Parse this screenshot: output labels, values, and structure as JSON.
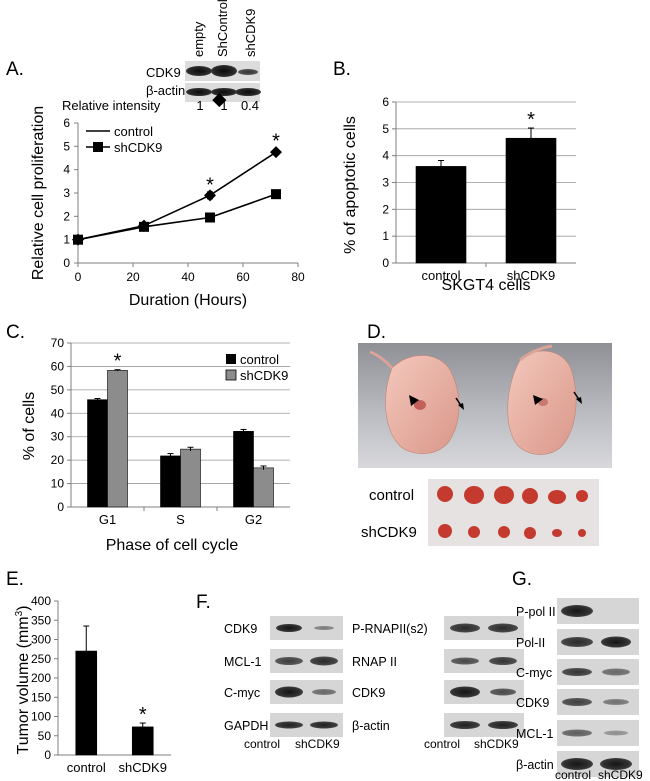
{
  "panels": {
    "A": "A.",
    "B": "B.",
    "C": "C.",
    "D": "D.",
    "E": "E.",
    "F": "F.",
    "G": "G."
  },
  "panel_a_blot": {
    "lanes": [
      "empty",
      "ShControl",
      "shCDK9"
    ],
    "rows": [
      "CDK9",
      "β-actin"
    ],
    "intensity_label": "Relative intensity",
    "intensity_values": [
      "1",
      "1",
      "0.4"
    ]
  },
  "panel_d": {
    "rows": [
      "control",
      "shCDK9"
    ]
  },
  "panel_f": {
    "left_rows": [
      "CDK9",
      "MCL-1",
      "C-myc",
      "GAPDH"
    ],
    "right_rows": [
      "P-RNAPII(s2)",
      "RNAP II",
      "CDK9",
      "β-actin"
    ],
    "lanes": [
      "control",
      "shCDK9"
    ]
  },
  "panel_g": {
    "rows": [
      "P-pol II",
      "Pol-II",
      "C-myc",
      "CDK9",
      "MCL-1",
      "β-actin"
    ],
    "lanes": [
      "control",
      "shCDK9"
    ]
  },
  "chart_data": [
    {
      "id": "A",
      "type": "line",
      "xlabel": "Duration (Hours)",
      "ylabel": "Relative cell proliferation",
      "xlim": [
        0,
        80
      ],
      "ylim": [
        0,
        6
      ],
      "xticks": [
        "0",
        "20",
        "40",
        "60",
        "80"
      ],
      "yticks": [
        "0",
        "1",
        "2",
        "3",
        "4",
        "5",
        "6"
      ],
      "legend": "top-left",
      "series": [
        {
          "name": "control",
          "marker": "diamond",
          "x": [
            0,
            24,
            48,
            72
          ],
          "y": [
            1,
            1.6,
            2.9,
            4.75
          ],
          "err": [
            0,
            0.08,
            0.15,
            0.08
          ]
        },
        {
          "name": "shCDK9",
          "marker": "square",
          "x": [
            0,
            24,
            48,
            72
          ],
          "y": [
            1,
            1.55,
            1.95,
            2.95
          ],
          "err": [
            0,
            0.05,
            0.05,
            0.05
          ]
        }
      ],
      "annotations": [
        {
          "text": "*",
          "x": 48,
          "y": 3.4
        },
        {
          "text": "*",
          "x": 72,
          "y": 5.3
        }
      ]
    },
    {
      "id": "B",
      "type": "bar",
      "xlabel": "SKGT4 cells",
      "ylabel": "% of apoptotic cells",
      "categories": [
        "control",
        "shCDK9"
      ],
      "values": [
        3.6,
        4.65
      ],
      "errors": [
        0.22,
        0.38
      ],
      "ylim": [
        0,
        6
      ],
      "yticks": [
        "0",
        "1",
        "2",
        "3",
        "4",
        "5",
        "6"
      ],
      "grid": true,
      "annotations": [
        {
          "text": "*",
          "category": "shCDK9"
        }
      ]
    },
    {
      "id": "C",
      "type": "bar",
      "xlabel": "Phase of cell cycle",
      "ylabel": "% of cells",
      "categories": [
        "G1",
        "S",
        "G2"
      ],
      "ylim": [
        0,
        70
      ],
      "yticks": [
        "0",
        "10",
        "20",
        "30",
        "40",
        "50",
        "60",
        "70"
      ],
      "grid": true,
      "legend": "top-right",
      "series": [
        {
          "name": "control",
          "color": "#000000",
          "values": [
            45.8,
            21.8,
            32.3
          ],
          "errors": [
            0.5,
            1.0,
            0.8
          ]
        },
        {
          "name": "shCDK9",
          "color": "#8c8c8c",
          "values": [
            58.3,
            24.7,
            16.7
          ],
          "errors": [
            0.3,
            0.8,
            0.8
          ]
        }
      ],
      "annotations": [
        {
          "text": "*",
          "category": "G1"
        }
      ]
    },
    {
      "id": "E",
      "type": "bar",
      "ylabel": "Tumor volume (mm3)",
      "ylabel_main": "Tumor volume (mm",
      "ylabel_sup": "3",
      "ylabel_end": ")",
      "categories": [
        "control",
        "shCDK9"
      ],
      "values": [
        270,
        73
      ],
      "errors": [
        65,
        10
      ],
      "ylim": [
        0,
        400
      ],
      "yticks": [
        "0",
        "50",
        "100",
        "150",
        "200",
        "250",
        "300",
        "350",
        "400"
      ],
      "annotations": [
        {
          "text": "*",
          "category": "shCDK9"
        }
      ]
    }
  ]
}
